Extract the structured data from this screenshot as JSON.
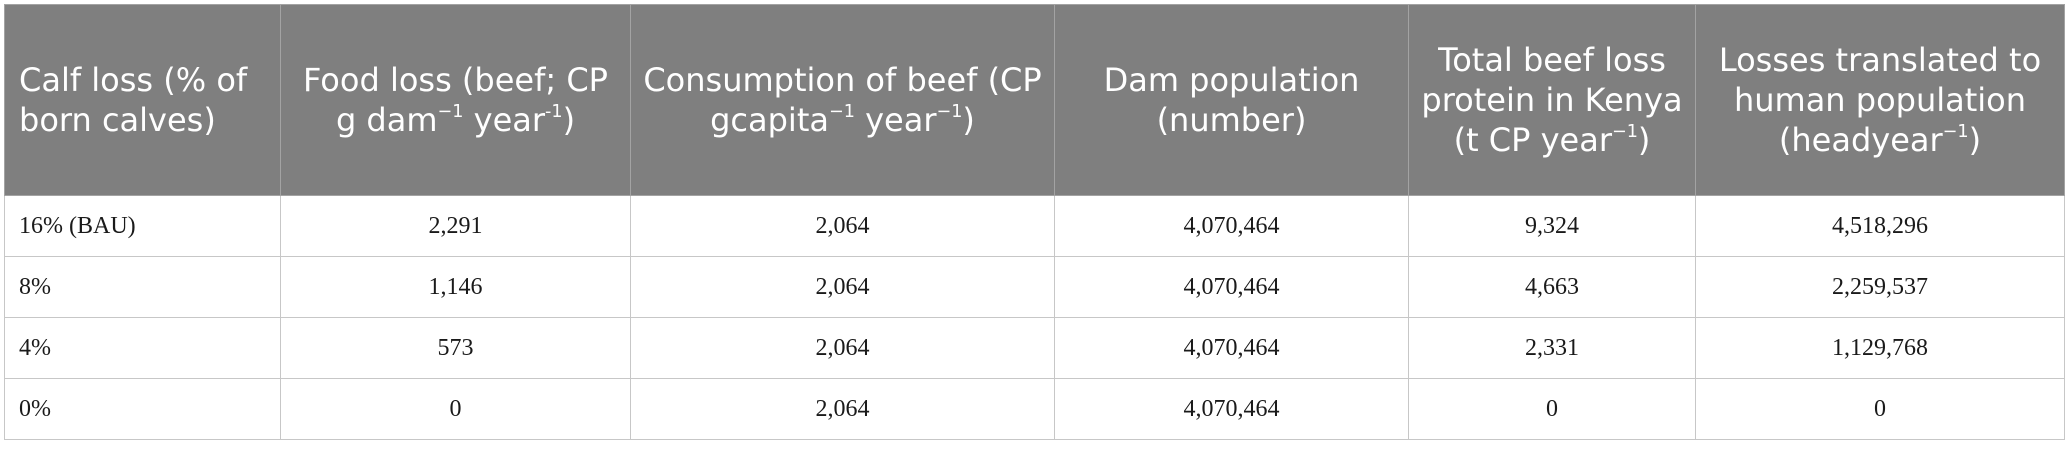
{
  "table": {
    "headers": [
      {
        "main": "Calf loss (% of born calves)"
      },
      {
        "pre": "Food loss (beef; CP g dam",
        "sup1": "−1",
        "mid": " year",
        "sup2": "-1",
        "post": ")"
      },
      {
        "pre": "Consumption of beef (CP gcapita",
        "sup1": "−1",
        "mid": " year",
        "sup2": "−1",
        "post": ")"
      },
      {
        "main": "Dam population (number)"
      },
      {
        "pre": "Total beef loss protein in Kenya (t CP year",
        "sup1": "−1",
        "post": ")"
      },
      {
        "pre": "Losses translated to human population (headyear",
        "sup1": "−1",
        "post": ")"
      }
    ],
    "rows": [
      [
        "16% (BAU)",
        "2,291",
        "2,064",
        "4,070,464",
        "9,324",
        "4,518,296"
      ],
      [
        "8%",
        "1,146",
        "2,064",
        "4,070,464",
        "4,663",
        "2,259,537"
      ],
      [
        "4%",
        "573",
        "2,064",
        "4,070,464",
        "2,331",
        "1,129,768"
      ],
      [
        "0%",
        "0",
        "2,064",
        "4,070,464",
        "0",
        "0"
      ]
    ]
  }
}
